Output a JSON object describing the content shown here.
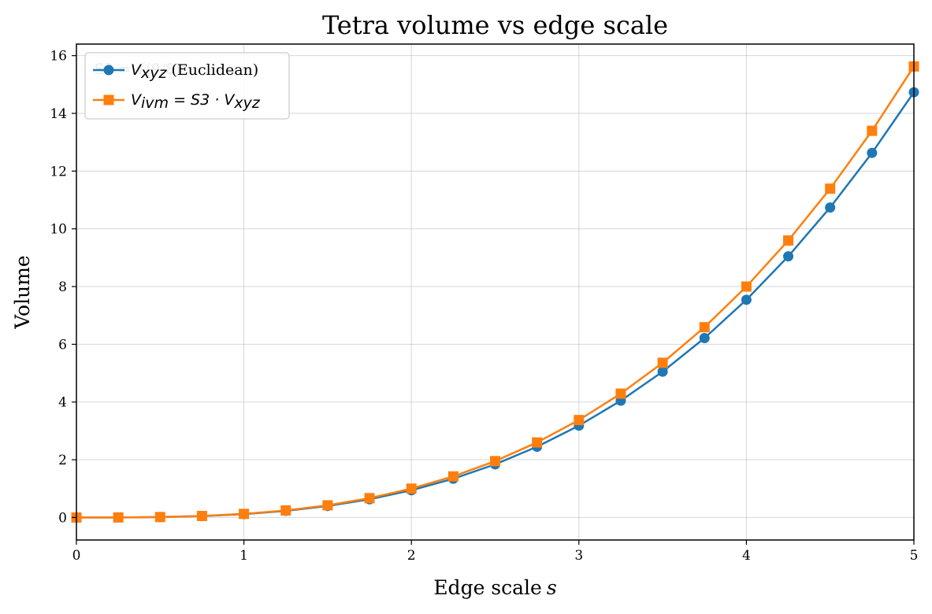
{
  "chart_data": {
    "type": "line",
    "title": "Tetra volume vs edge scale",
    "xlabel": "Edge scale",
    "xlabel_var": "s",
    "ylabel": "Volume",
    "xlim": [
      0,
      5
    ],
    "ylim": [
      -0.78,
      16.4
    ],
    "xticks": [
      0,
      1,
      2,
      3,
      4,
      5
    ],
    "yticks": [
      0,
      2,
      4,
      6,
      8,
      10,
      12,
      14,
      16
    ],
    "grid": true,
    "legend_position": "top-left",
    "annotation_faint": "S3 = √(9/8)",
    "x": [
      0,
      0.25,
      0.5,
      0.75,
      1.0,
      1.25,
      1.5,
      1.75,
      2.0,
      2.25,
      2.5,
      2.75,
      3.0,
      3.25,
      3.5,
      3.75,
      4.0,
      4.25,
      4.5,
      4.75,
      5.0
    ],
    "series": [
      {
        "name": "V_xyz (Euclidean)",
        "legend_parts": [
          "V",
          "xyz",
          " (Euclidean)"
        ],
        "color": "#1f77b4",
        "marker": "circle",
        "values": [
          0,
          0.0018,
          0.0147,
          0.0497,
          0.1179,
          0.2302,
          0.3977,
          0.6316,
          0.9428,
          1.3424,
          1.8414,
          2.4509,
          3.182,
          4.0456,
          5.053,
          6.215,
          7.542,
          9.047,
          10.739,
          12.631,
          14.731
        ]
      },
      {
        "name": "V_ivm = S3 · V_xyz",
        "legend_parts": [
          "V",
          "ivm",
          " = S3 · ",
          "V",
          "xyz"
        ],
        "color": "#ff7f0e",
        "marker": "square",
        "values": [
          0,
          0.002,
          0.0156,
          0.0527,
          0.125,
          0.2441,
          0.4219,
          0.6699,
          1.0,
          1.4238,
          1.9531,
          2.5996,
          3.375,
          4.291,
          5.359,
          6.592,
          8.0,
          9.596,
          11.391,
          13.396,
          15.625
        ]
      }
    ]
  }
}
